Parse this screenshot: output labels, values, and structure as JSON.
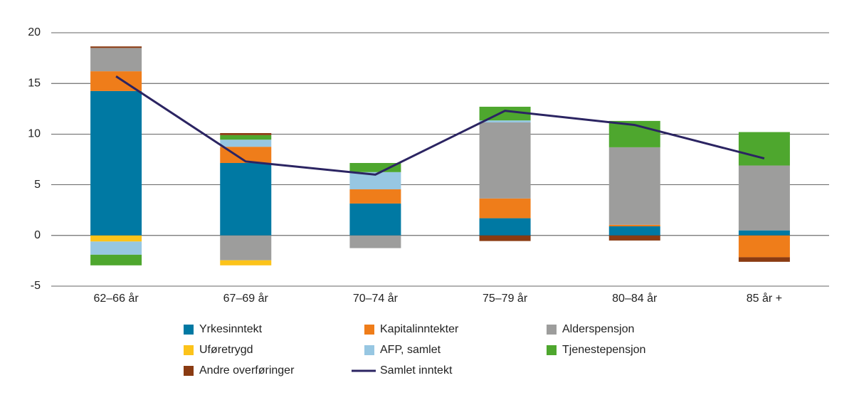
{
  "chart_data": {
    "type": "bar",
    "stacked": true,
    "categories": [
      "62–66 år",
      "67–69 år",
      "70–74 år",
      "75–79 år",
      "80–84 år",
      "85 år +"
    ],
    "series": [
      {
        "name": "Yrkesinntekt",
        "color": "#0079a3",
        "values": [
          14.25,
          7.15,
          3.15,
          1.7,
          0.9,
          0.5
        ]
      },
      {
        "name": "Kapitalinntekter",
        "color": "#ef7d1a",
        "values": [
          1.95,
          1.6,
          1.4,
          1.95,
          0.15,
          -2.15
        ]
      },
      {
        "name": "Alderspensjon",
        "color": "#9d9d9c",
        "values": [
          2.3,
          -2.45,
          -1.25,
          7.5,
          7.65,
          6.4
        ]
      },
      {
        "name": "Uføretrygd",
        "color": "#fcc31a",
        "values": [
          -0.6,
          -0.5,
          0,
          0,
          0,
          0
        ]
      },
      {
        "name": "AFP, samlet",
        "color": "#97c7e2",
        "values": [
          -1.3,
          0.7,
          1.7,
          0.2,
          0,
          0
        ]
      },
      {
        "name": "Tjenestepensjon",
        "color": "#4ea72e",
        "values": [
          -1.05,
          0.45,
          0.9,
          1.35,
          2.6,
          3.3
        ]
      },
      {
        "name": "Andre overføringer",
        "color": "#8a3b12",
        "values": [
          0.15,
          0.2,
          0,
          -0.55,
          -0.5,
          -0.45
        ]
      },
      {
        "name": "Samlet inntekt",
        "color": "#2b2462",
        "type": "line",
        "values": [
          15.7,
          7.3,
          6.0,
          12.3,
          10.9,
          7.6
        ]
      }
    ],
    "ylim": [
      -5,
      20
    ],
    "yticks": [
      -5,
      0,
      5,
      10,
      15,
      20
    ],
    "grid": true,
    "legend": "bottom"
  }
}
